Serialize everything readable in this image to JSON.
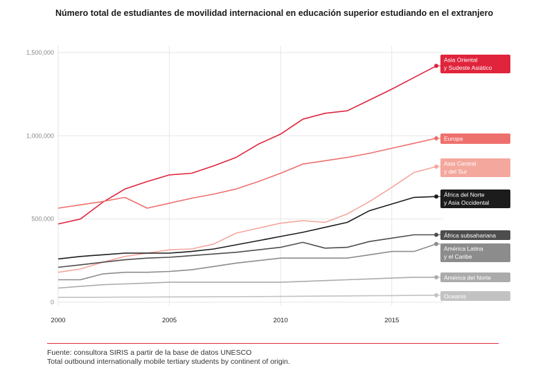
{
  "title": "Número total de estudiantes de movilidad internacional en educación superior estudiando en el extranjero",
  "footer": {
    "line1": "Fuente: consultora SIRIS a partir de la base de datos UNESCO",
    "line2": "Total outbound internationally mobile tertiary students by continent of origin."
  },
  "chart_data": {
    "type": "line",
    "xlim": [
      2000,
      2017
    ],
    "ylim": [
      0,
      1500000
    ],
    "x_ticks": [
      2000,
      2005,
      2010,
      2015
    ],
    "x_tick_labels": [
      "2000",
      "2005",
      "2010",
      "2015"
    ],
    "y_ticks": [
      0,
      500000,
      1000000,
      1500000
    ],
    "y_tick_labels": [
      "0",
      "500,000",
      "1,000,000",
      "1,500,000"
    ],
    "x": [
      2000,
      2001,
      2002,
      2003,
      2004,
      2005,
      2006,
      2007,
      2008,
      2009,
      2010,
      2011,
      2012,
      2013,
      2014,
      2015,
      2016,
      2017
    ],
    "series": [
      {
        "name": "Asia Oriental y Sudeste Asiático",
        "label_lines": [
          "Asia Oriental",
          "y Sudeste Asiático"
        ],
        "color": "#e0243c",
        "label_text_color": "#ffffff",
        "values": [
          470000,
          500000,
          600000,
          680000,
          725000,
          765000,
          775000,
          820000,
          870000,
          950000,
          1010000,
          1100000,
          1135000,
          1150000,
          1215000,
          1280000,
          1350000,
          1420000
        ]
      },
      {
        "name": "Europa",
        "label_lines": [
          "Europa"
        ],
        "color": "#ee706d",
        "label_text_color": "#ffffff",
        "values": [
          565000,
          585000,
          605000,
          630000,
          565000,
          595000,
          625000,
          650000,
          680000,
          725000,
          775000,
          830000,
          850000,
          870000,
          895000,
          925000,
          955000,
          985000
        ]
      },
      {
        "name": "Asia Central y del Sur",
        "label_lines": [
          "Asia Central",
          "y del Sur"
        ],
        "color": "#f4a79c",
        "label_text_color": "#ffffff",
        "values": [
          180000,
          200000,
          240000,
          275000,
          295000,
          315000,
          320000,
          350000,
          415000,
          445000,
          475000,
          490000,
          480000,
          530000,
          605000,
          690000,
          780000,
          815000
        ]
      },
      {
        "name": "África del Norte y Asia Occidental",
        "label_lines": [
          "África del Norte",
          "y Asia Occidental"
        ],
        "color": "#1c1c1c",
        "label_text_color": "#ffffff",
        "values": [
          260000,
          275000,
          285000,
          295000,
          295000,
          295000,
          305000,
          320000,
          345000,
          370000,
          395000,
          420000,
          450000,
          480000,
          550000,
          590000,
          630000,
          635000
        ]
      },
      {
        "name": "África subsahariana",
        "label_lines": [
          "África subsahariana"
        ],
        "color": "#4d4d4d",
        "label_text_color": "#ffffff",
        "values": [
          210000,
          225000,
          240000,
          255000,
          265000,
          270000,
          280000,
          290000,
          300000,
          315000,
          330000,
          360000,
          325000,
          330000,
          365000,
          385000,
          405000,
          405000
        ]
      },
      {
        "name": "América Latina y el Caribe",
        "label_lines": [
          "América Latina",
          "y el Caribe"
        ],
        "color": "#8c8c8c",
        "label_text_color": "#ffffff",
        "values": [
          135000,
          135000,
          170000,
          180000,
          180000,
          185000,
          195000,
          215000,
          235000,
          250000,
          265000,
          265000,
          265000,
          265000,
          285000,
          305000,
          305000,
          350000
        ]
      },
      {
        "name": "América del Norte",
        "label_lines": [
          "América del Norte"
        ],
        "color": "#ababab",
        "label_text_color": "#ffffff",
        "values": [
          85000,
          95000,
          105000,
          110000,
          115000,
          120000,
          120000,
          120000,
          120000,
          120000,
          120000,
          125000,
          130000,
          135000,
          140000,
          145000,
          150000,
          150000
        ]
      },
      {
        "name": "Oceanía",
        "label_lines": [
          "Oceanía"
        ],
        "color": "#c2c2c2",
        "label_text_color": "#ffffff",
        "values": [
          30000,
          30000,
          30000,
          31000,
          31000,
          32000,
          32000,
          33000,
          33000,
          34000,
          35000,
          36000,
          37000,
          38000,
          39000,
          40000,
          41000,
          42000
        ]
      }
    ]
  }
}
